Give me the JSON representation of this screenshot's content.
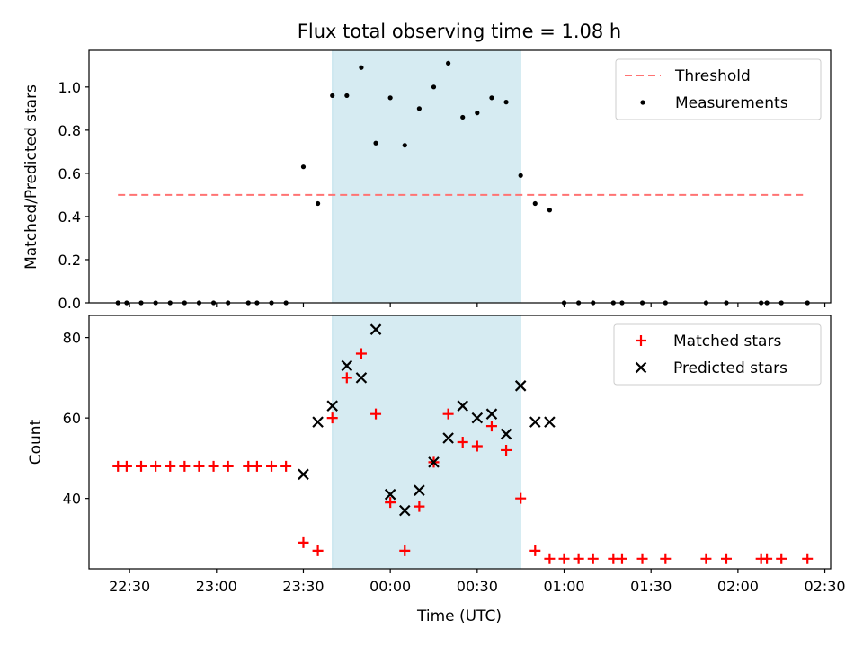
{
  "chart_data": [
    {
      "type": "scatter",
      "title": "Flux total observing time = 1.08 h",
      "xlabel": "",
      "ylabel": "Matched/Predicted stars",
      "x_unit": "time",
      "xlim": [
        "22:16",
        "02:32"
      ],
      "ylim": [
        0,
        1.17
      ],
      "x_ticks": [
        "22:30",
        "23:00",
        "23:30",
        "00:00",
        "00:30",
        "01:00",
        "01:30",
        "02:00",
        "02:30"
      ],
      "y_ticks": [
        "0.0",
        "0.2",
        "0.4",
        "0.6",
        "0.8",
        "1.0"
      ],
      "shaded_span": {
        "x": [
          "23:40",
          "00:45"
        ],
        "color": "#add8e6"
      },
      "grid": false,
      "legend_position": "upper right",
      "lines": [
        {
          "name": "Threshold",
          "x": [
            "22:26",
            "02:24"
          ],
          "y": [
            0.5,
            0.5
          ],
          "style": "dashed",
          "color": "#ff7373"
        }
      ],
      "series": [
        {
          "name": "Measurements",
          "color": "#000000",
          "marker": "dot",
          "points": [
            {
              "x": "22:26",
              "y": 0
            },
            {
              "x": "22:29",
              "y": 0
            },
            {
              "x": "22:34",
              "y": 0
            },
            {
              "x": "22:39",
              "y": 0
            },
            {
              "x": "22:44",
              "y": 0
            },
            {
              "x": "22:49",
              "y": 0
            },
            {
              "x": "22:54",
              "y": 0
            },
            {
              "x": "22:59",
              "y": 0
            },
            {
              "x": "23:04",
              "y": 0
            },
            {
              "x": "23:11",
              "y": 0
            },
            {
              "x": "23:14",
              "y": 0
            },
            {
              "x": "23:19",
              "y": 0
            },
            {
              "x": "23:24",
              "y": 0
            },
            {
              "x": "23:30",
              "y": 0.63
            },
            {
              "x": "23:35",
              "y": 0.46
            },
            {
              "x": "23:40",
              "y": 0.96
            },
            {
              "x": "23:45",
              "y": 0.96
            },
            {
              "x": "23:50",
              "y": 1.09
            },
            {
              "x": "23:55",
              "y": 0.74
            },
            {
              "x": "00:00",
              "y": 0.95
            },
            {
              "x": "00:05",
              "y": 0.73
            },
            {
              "x": "00:10",
              "y": 0.9
            },
            {
              "x": "00:15",
              "y": 1.0
            },
            {
              "x": "00:20",
              "y": 1.11
            },
            {
              "x": "00:25",
              "y": 0.86
            },
            {
              "x": "00:30",
              "y": 0.88
            },
            {
              "x": "00:35",
              "y": 0.95
            },
            {
              "x": "00:40",
              "y": 0.93
            },
            {
              "x": "00:45",
              "y": 0.59
            },
            {
              "x": "00:50",
              "y": 0.46
            },
            {
              "x": "00:55",
              "y": 0.43
            },
            {
              "x": "01:00",
              "y": 0
            },
            {
              "x": "01:05",
              "y": 0
            },
            {
              "x": "01:10",
              "y": 0
            },
            {
              "x": "01:17",
              "y": 0
            },
            {
              "x": "01:20",
              "y": 0
            },
            {
              "x": "01:27",
              "y": 0
            },
            {
              "x": "01:35",
              "y": 0
            },
            {
              "x": "01:49",
              "y": 0
            },
            {
              "x": "01:56",
              "y": 0
            },
            {
              "x": "02:08",
              "y": 0
            },
            {
              "x": "02:10",
              "y": 0
            },
            {
              "x": "02:15",
              "y": 0
            },
            {
              "x": "02:24",
              "y": 0
            }
          ]
        }
      ]
    },
    {
      "type": "scatter",
      "title": "",
      "xlabel": "Time (UTC)",
      "ylabel": "Count",
      "x_unit": "time",
      "xlim": [
        "22:16",
        "02:32"
      ],
      "ylim": [
        22.5,
        85.5
      ],
      "x_ticks": [
        "22:30",
        "23:00",
        "23:30",
        "00:00",
        "00:30",
        "01:00",
        "01:30",
        "02:00",
        "02:30"
      ],
      "y_ticks": [
        "40",
        "60",
        "80"
      ],
      "shaded_span": {
        "x": [
          "23:40",
          "00:45"
        ],
        "color": "#add8e6"
      },
      "grid": false,
      "legend_position": "upper right",
      "series": [
        {
          "name": "Matched stars",
          "color": "#ff0000",
          "marker": "plus",
          "points": [
            {
              "x": "22:26",
              "y": 48
            },
            {
              "x": "22:29",
              "y": 48
            },
            {
              "x": "22:34",
              "y": 48
            },
            {
              "x": "22:39",
              "y": 48
            },
            {
              "x": "22:44",
              "y": 48
            },
            {
              "x": "22:49",
              "y": 48
            },
            {
              "x": "22:54",
              "y": 48
            },
            {
              "x": "22:59",
              "y": 48
            },
            {
              "x": "23:04",
              "y": 48
            },
            {
              "x": "23:11",
              "y": 48
            },
            {
              "x": "23:14",
              "y": 48
            },
            {
              "x": "23:19",
              "y": 48
            },
            {
              "x": "23:24",
              "y": 48
            },
            {
              "x": "23:30",
              "y": 29
            },
            {
              "x": "23:35",
              "y": 27
            },
            {
              "x": "23:40",
              "y": 60
            },
            {
              "x": "23:45",
              "y": 70
            },
            {
              "x": "23:50",
              "y": 76
            },
            {
              "x": "23:55",
              "y": 61
            },
            {
              "x": "00:00",
              "y": 39
            },
            {
              "x": "00:05",
              "y": 27
            },
            {
              "x": "00:10",
              "y": 38
            },
            {
              "x": "00:15",
              "y": 49
            },
            {
              "x": "00:20",
              "y": 61
            },
            {
              "x": "00:25",
              "y": 54
            },
            {
              "x": "00:30",
              "y": 53
            },
            {
              "x": "00:35",
              "y": 58
            },
            {
              "x": "00:40",
              "y": 52
            },
            {
              "x": "00:45",
              "y": 40
            },
            {
              "x": "00:50",
              "y": 27
            },
            {
              "x": "00:55",
              "y": 25
            },
            {
              "x": "01:00",
              "y": 25
            },
            {
              "x": "01:05",
              "y": 25
            },
            {
              "x": "01:10",
              "y": 25
            },
            {
              "x": "01:17",
              "y": 25
            },
            {
              "x": "01:20",
              "y": 25
            },
            {
              "x": "01:27",
              "y": 25
            },
            {
              "x": "01:35",
              "y": 25
            },
            {
              "x": "01:49",
              "y": 25
            },
            {
              "x": "01:56",
              "y": 25
            },
            {
              "x": "02:08",
              "y": 25
            },
            {
              "x": "02:10",
              "y": 25
            },
            {
              "x": "02:15",
              "y": 25
            },
            {
              "x": "02:24",
              "y": 25
            }
          ]
        },
        {
          "name": "Predicted stars",
          "color": "#000000",
          "marker": "x",
          "points": [
            {
              "x": "23:30",
              "y": 46
            },
            {
              "x": "23:35",
              "y": 59
            },
            {
              "x": "23:40",
              "y": 63
            },
            {
              "x": "23:45",
              "y": 73
            },
            {
              "x": "23:50",
              "y": 70
            },
            {
              "x": "23:55",
              "y": 82
            },
            {
              "x": "00:00",
              "y": 41
            },
            {
              "x": "00:05",
              "y": 37
            },
            {
              "x": "00:10",
              "y": 42
            },
            {
              "x": "00:15",
              "y": 49
            },
            {
              "x": "00:20",
              "y": 55
            },
            {
              "x": "00:25",
              "y": 63
            },
            {
              "x": "00:30",
              "y": 60
            },
            {
              "x": "00:35",
              "y": 61
            },
            {
              "x": "00:40",
              "y": 56
            },
            {
              "x": "00:45",
              "y": 68
            },
            {
              "x": "00:50",
              "y": 59
            },
            {
              "x": "00:55",
              "y": 59
            }
          ]
        }
      ]
    }
  ]
}
